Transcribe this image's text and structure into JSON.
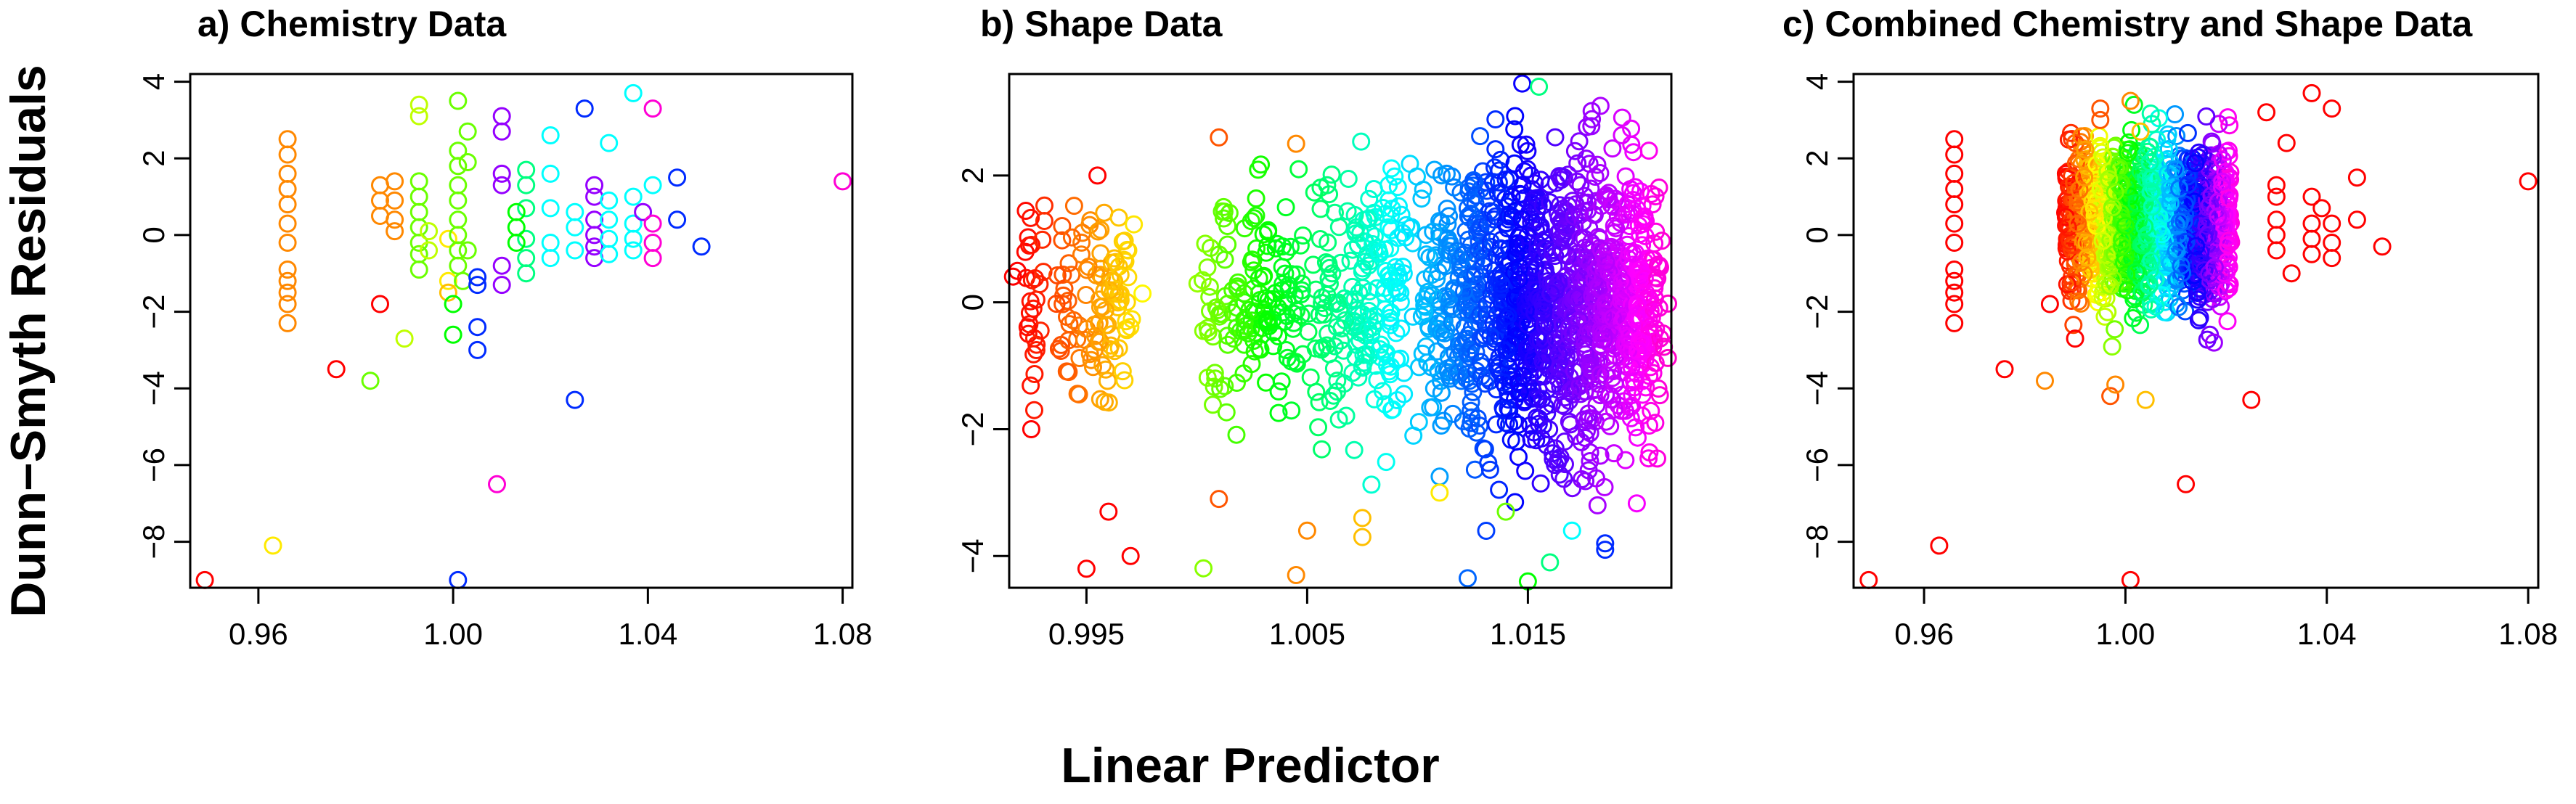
{
  "figure": {
    "ylabel": "Dunn−Smyth Residuals",
    "xlabel": "Linear Predictor"
  },
  "chart_data": [
    {
      "type": "scatter",
      "title": "a) Chemistry Data",
      "xlim": [
        0.946,
        1.082
      ],
      "ylim": [
        -9.2,
        4.2
      ],
      "xticks": [
        "0.96",
        "1.00",
        "1.04",
        "1.08"
      ],
      "yticks": [
        "-8",
        "-6",
        "-4",
        "-2",
        "0",
        "2",
        "4"
      ],
      "grid": false,
      "color_encoding": "rainbow hue by observation group (red → orange → yellow → green → cyan → blue → magenta)",
      "points": [
        [
          0.949,
          -9.0,
          0
        ],
        [
          0.963,
          -8.1,
          4
        ],
        [
          0.976,
          -3.5,
          0
        ],
        [
          0.983,
          -3.8,
          6
        ],
        [
          0.985,
          -1.8,
          0
        ],
        [
          0.99,
          -2.7,
          5
        ],
        [
          0.966,
          2.5,
          2
        ],
        [
          0.966,
          2.1,
          2
        ],
        [
          0.966,
          1.6,
          2
        ],
        [
          0.966,
          1.2,
          2
        ],
        [
          0.966,
          0.8,
          2
        ],
        [
          0.966,
          0.3,
          2
        ],
        [
          0.966,
          -0.2,
          2
        ],
        [
          0.966,
          -0.9,
          2
        ],
        [
          0.966,
          -1.2,
          2
        ],
        [
          0.966,
          -1.5,
          2
        ],
        [
          0.966,
          -1.8,
          2
        ],
        [
          0.966,
          -2.3,
          2
        ],
        [
          0.985,
          1.3,
          2
        ],
        [
          0.985,
          0.9,
          2
        ],
        [
          0.985,
          0.5,
          2
        ],
        [
          0.988,
          1.4,
          2
        ],
        [
          0.988,
          0.9,
          2
        ],
        [
          0.988,
          0.4,
          2
        ],
        [
          0.988,
          0.1,
          2
        ],
        [
          0.993,
          3.4,
          5
        ],
        [
          0.993,
          3.1,
          5
        ],
        [
          0.993,
          1.4,
          6
        ],
        [
          0.993,
          1.0,
          6
        ],
        [
          0.993,
          0.6,
          6
        ],
        [
          0.993,
          0.2,
          6
        ],
        [
          0.993,
          -0.2,
          6
        ],
        [
          0.993,
          -0.5,
          6
        ],
        [
          0.993,
          -0.9,
          6
        ],
        [
          0.995,
          0.1,
          5
        ],
        [
          0.995,
          -0.4,
          5
        ],
        [
          0.999,
          -0.1,
          4
        ],
        [
          0.999,
          -1.2,
          4
        ],
        [
          0.999,
          -1.5,
          3
        ],
        [
          1.0,
          -1.8,
          7
        ],
        [
          1.0,
          -2.6,
          7
        ],
        [
          1.001,
          3.5,
          6
        ],
        [
          1.001,
          2.2,
          6
        ],
        [
          1.001,
          1.8,
          6
        ],
        [
          1.001,
          1.3,
          6
        ],
        [
          1.001,
          0.9,
          6
        ],
        [
          1.001,
          0.4,
          6
        ],
        [
          1.001,
          0.0,
          6
        ],
        [
          1.001,
          -0.4,
          6
        ],
        [
          1.001,
          -0.8,
          6
        ],
        [
          1.002,
          -1.2,
          6
        ],
        [
          1.003,
          2.7,
          6
        ],
        [
          1.003,
          1.9,
          6
        ],
        [
          1.003,
          -0.4,
          6
        ],
        [
          1.001,
          -9.0,
          11
        ],
        [
          1.005,
          -1.1,
          11
        ],
        [
          1.005,
          -1.3,
          11
        ],
        [
          1.005,
          -2.4,
          11
        ],
        [
          1.005,
          -3.0,
          11
        ],
        [
          1.01,
          3.1,
          12
        ],
        [
          1.01,
          2.7,
          12
        ],
        [
          1.01,
          1.6,
          12
        ],
        [
          1.01,
          1.3,
          12
        ],
        [
          1.01,
          -0.8,
          12
        ],
        [
          1.01,
          -1.3,
          12
        ],
        [
          1.009,
          -6.5,
          13
        ],
        [
          1.015,
          1.7,
          8
        ],
        [
          1.015,
          1.3,
          8
        ],
        [
          1.015,
          0.7,
          8
        ],
        [
          1.015,
          -0.1,
          8
        ],
        [
          1.015,
          -0.6,
          8
        ],
        [
          1.015,
          -1.0,
          8
        ],
        [
          1.013,
          0.6,
          7
        ],
        [
          1.013,
          0.2,
          7
        ],
        [
          1.013,
          -0.2,
          7
        ],
        [
          1.02,
          2.6,
          9
        ],
        [
          1.02,
          1.6,
          9
        ],
        [
          1.02,
          0.7,
          9
        ],
        [
          1.02,
          -0.2,
          9
        ],
        [
          1.02,
          -0.6,
          9
        ],
        [
          1.025,
          -4.3,
          11
        ],
        [
          1.025,
          0.6,
          9
        ],
        [
          1.025,
          0.2,
          9
        ],
        [
          1.025,
          -0.4,
          9
        ],
        [
          1.027,
          3.3,
          11
        ],
        [
          1.029,
          1.3,
          12
        ],
        [
          1.029,
          1.0,
          12
        ],
        [
          1.029,
          0.4,
          12
        ],
        [
          1.029,
          0.0,
          12
        ],
        [
          1.029,
          -0.3,
          12
        ],
        [
          1.029,
          -0.6,
          12
        ],
        [
          1.032,
          2.4,
          9
        ],
        [
          1.032,
          0.9,
          9
        ],
        [
          1.032,
          0.4,
          9
        ],
        [
          1.032,
          -0.1,
          9
        ],
        [
          1.032,
          -0.5,
          9
        ],
        [
          1.037,
          3.7,
          9
        ],
        [
          1.037,
          1.0,
          9
        ],
        [
          1.037,
          0.3,
          9
        ],
        [
          1.037,
          -0.1,
          9
        ],
        [
          1.037,
          -0.4,
          9
        ],
        [
          1.039,
          0.6,
          12
        ],
        [
          1.041,
          3.3,
          13
        ],
        [
          1.041,
          0.3,
          13
        ],
        [
          1.041,
          -0.2,
          13
        ],
        [
          1.041,
          -0.6,
          13
        ],
        [
          1.041,
          1.3,
          9
        ],
        [
          1.046,
          1.5,
          11
        ],
        [
          1.046,
          0.4,
          11
        ],
        [
          1.051,
          -0.3,
          11
        ],
        [
          1.08,
          1.4,
          13
        ]
      ]
    },
    {
      "type": "scatter",
      "title": "b) Shape Data",
      "xlim": [
        0.9915,
        1.0215
      ],
      "ylim": [
        -4.5,
        3.6
      ],
      "xticks": [
        "0.995",
        "1.005",
        "1.015"
      ],
      "yticks": [
        "-4",
        "-2",
        "0",
        "2"
      ],
      "grid": false,
      "color_encoding": "rainbow hue increasing with linear predictor (red → orange → yellow → green → cyan → blue → magenta)",
      "point_clusters": [
        {
          "x": 0.9925,
          "y_spread": 1.0,
          "count": 32,
          "hue": 0
        },
        {
          "x": 0.9945,
          "y_spread": 0.9,
          "count": 28,
          "hue": 0
        },
        {
          "x": 0.9955,
          "y_spread": 0.9,
          "count": 40,
          "hue": 0
        },
        {
          "x": 0.9965,
          "y_spread": 0.9,
          "count": 40,
          "hue": 0
        },
        {
          "x": 1.001,
          "y_spread": 1.0,
          "count": 40,
          "hue": 1
        },
        {
          "x": 1.0025,
          "y_spread": 0.9,
          "count": 55,
          "hue": 2
        },
        {
          "x": 1.004,
          "y_spread": 0.9,
          "count": 60,
          "hue": 2
        },
        {
          "x": 1.006,
          "y_spread": 1.0,
          "count": 55,
          "hue": 3
        },
        {
          "x": 1.0075,
          "y_spread": 1.0,
          "count": 75,
          "hue": 3
        },
        {
          "x": 1.009,
          "y_spread": 1.0,
          "count": 75,
          "hue": 4
        },
        {
          "x": 1.011,
          "y_spread": 1.0,
          "count": 90,
          "hue": 5
        },
        {
          "x": 1.0125,
          "y_spread": 1.2,
          "count": 140,
          "hue": 5
        },
        {
          "x": 1.014,
          "y_spread": 1.2,
          "count": 170,
          "hue": 6
        },
        {
          "x": 1.0152,
          "y_spread": 1.2,
          "count": 180,
          "hue": 7
        },
        {
          "x": 1.0165,
          "y_spread": 1.2,
          "count": 180,
          "hue": 9
        },
        {
          "x": 1.0178,
          "y_spread": 1.2,
          "count": 180,
          "hue": 11
        },
        {
          "x": 1.019,
          "y_spread": 1.1,
          "count": 170,
          "hue": 12
        },
        {
          "x": 1.0202,
          "y_spread": 1.0,
          "count": 160,
          "hue": 13
        }
      ],
      "outliers": [
        [
          0.9925,
          -2.0,
          0
        ],
        [
          0.995,
          -4.2,
          0
        ],
        [
          0.996,
          -3.3,
          0
        ],
        [
          0.997,
          -4.0,
          0
        ],
        [
          0.9955,
          2.0,
          0
        ],
        [
          1.001,
          -3.1,
          1
        ],
        [
          1.001,
          2.6,
          1
        ],
        [
          1.0045,
          -4.3,
          2
        ],
        [
          1.005,
          -3.6,
          2
        ],
        [
          1.0045,
          2.5,
          2
        ],
        [
          1.0075,
          -3.7,
          3
        ],
        [
          1.0075,
          -3.4,
          3
        ],
        [
          1.011,
          -3.0,
          4
        ],
        [
          1.014,
          -3.3,
          6
        ],
        [
          1.015,
          -4.4,
          7
        ],
        [
          1.0155,
          3.4,
          8
        ],
        [
          1.017,
          -3.6,
          9
        ],
        [
          1.0185,
          -3.8,
          11
        ],
        [
          1.0185,
          -3.9,
          11
        ],
        [
          1.016,
          -4.1,
          8
        ]
      ]
    },
    {
      "type": "scatter",
      "title": "c) Combined Chemistry and Shape Data",
      "xlim": [
        0.946,
        1.082
      ],
      "ylim": [
        -9.2,
        4.2
      ],
      "xticks": [
        "0.96",
        "1.00",
        "1.04",
        "1.08"
      ],
      "yticks": [
        "-8",
        "-6",
        "-4",
        "-2",
        "0",
        "2",
        "4"
      ],
      "grid": false,
      "color_encoding": "rainbow hue increasing with linear predictor (red → orange → yellow → green → cyan → blue → magenta)",
      "points": [
        [
          0.949,
          -9.0,
          0
        ],
        [
          0.963,
          -8.1,
          0
        ],
        [
          0.976,
          -3.5,
          0
        ],
        [
          0.984,
          -3.8,
          2
        ],
        [
          0.985,
          -1.8,
          0
        ],
        [
          0.99,
          -2.7,
          0
        ],
        [
          0.966,
          2.5,
          0
        ],
        [
          0.966,
          2.1,
          0
        ],
        [
          0.966,
          1.6,
          0
        ],
        [
          0.966,
          1.2,
          0
        ],
        [
          0.966,
          0.8,
          0
        ],
        [
          0.966,
          0.3,
          0
        ],
        [
          0.966,
          -0.2,
          0
        ],
        [
          0.966,
          -0.9,
          0
        ],
        [
          0.966,
          -1.2,
          0
        ],
        [
          0.966,
          -1.5,
          0
        ],
        [
          0.966,
          -1.8,
          0
        ],
        [
          0.966,
          -2.3,
          0
        ],
        [
          1.001,
          -9.0,
          0
        ],
        [
          1.012,
          -6.5,
          0
        ],
        [
          1.025,
          -4.3,
          0
        ],
        [
          1.028,
          3.2,
          0
        ],
        [
          1.03,
          1.3,
          0
        ],
        [
          1.03,
          1.0,
          0
        ],
        [
          1.03,
          0.4,
          0
        ],
        [
          1.03,
          0.0,
          0
        ],
        [
          1.03,
          -0.4,
          0
        ],
        [
          1.032,
          2.4,
          0
        ],
        [
          1.033,
          -1.0,
          0
        ],
        [
          1.037,
          3.7,
          0
        ],
        [
          1.037,
          1.0,
          0
        ],
        [
          1.037,
          0.3,
          0
        ],
        [
          1.037,
          -0.1,
          0
        ],
        [
          1.037,
          -0.5,
          0
        ],
        [
          1.039,
          0.7,
          0
        ],
        [
          1.041,
          3.3,
          0
        ],
        [
          1.041,
          0.3,
          0
        ],
        [
          1.041,
          -0.2,
          0
        ],
        [
          1.041,
          -0.6,
          0
        ],
        [
          1.046,
          1.5,
          0
        ],
        [
          1.046,
          0.4,
          0
        ],
        [
          1.051,
          -0.3,
          0
        ],
        [
          1.08,
          1.4,
          0
        ],
        [
          0.995,
          3.3,
          1
        ],
        [
          0.995,
          3.0,
          1
        ],
        [
          0.997,
          -4.2,
          1
        ],
        [
          0.998,
          -3.9,
          2
        ],
        [
          1.001,
          3.5,
          2
        ],
        [
          1.004,
          -4.3,
          3
        ],
        [
          1.003,
          2.7,
          3
        ]
      ],
      "dense_band": {
        "x_range": [
          0.988,
          1.021
        ],
        "y_range": [
          -2.2,
          3.0
        ],
        "count": 1400
      }
    }
  ]
}
